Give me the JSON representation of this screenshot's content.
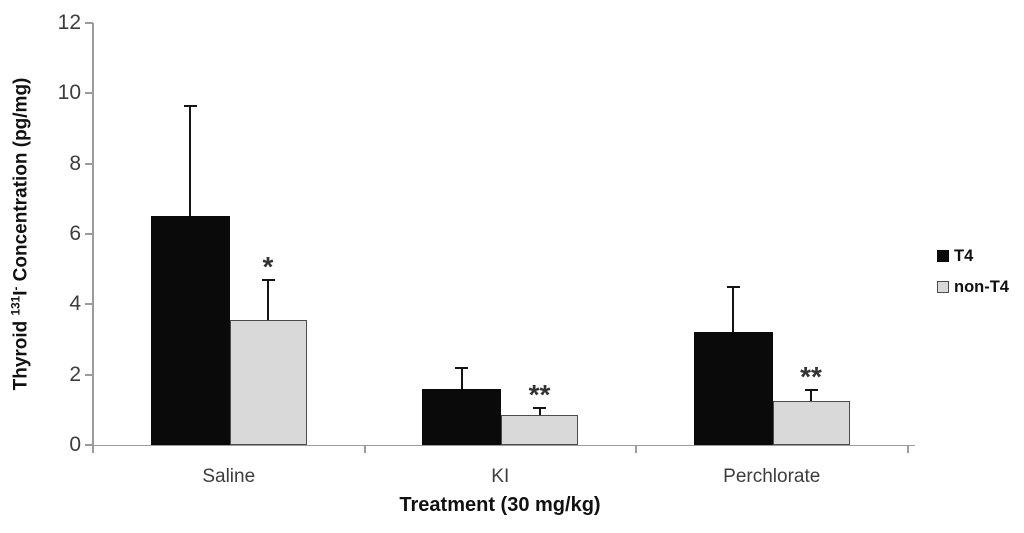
{
  "chart_data": {
    "type": "bar",
    "title": "",
    "xlabel": "Treatment (30 mg/kg)",
    "ylabel": "Thyroid ¹³¹I⁻ Concentration (pg/mg)",
    "ylabel_parts": {
      "prefix": "Thyroid ",
      "sup_isotope": "131",
      "element": "I",
      "sup_charge": "-",
      "suffix": " Concentration (pg/mg)"
    },
    "categories": [
      "Saline",
      "KI",
      "Perchlorate"
    ],
    "series": [
      {
        "name": "T4",
        "fill": "#0a0a0a",
        "border": "#0a0a0a",
        "values": [
          6.5,
          1.6,
          3.2
        ],
        "errors_upper": [
          3.15,
          0.6,
          1.3
        ],
        "significance": [
          "",
          "",
          ""
        ]
      },
      {
        "name": "non-T4",
        "fill": "#d9d9d9",
        "border": "#4d4d4d",
        "values": [
          3.55,
          0.85,
          1.25
        ],
        "errors_upper": [
          1.15,
          0.2,
          0.3
        ],
        "significance": [
          "*",
          "**",
          "**"
        ]
      }
    ],
    "yticks": [
      0,
      2,
      4,
      6,
      8,
      10,
      12
    ],
    "ylim": [
      0,
      12
    ],
    "grid": false,
    "legend_position": "right",
    "colors": {
      "axis": "#9b9b9b",
      "tick_label": "#3d3d3d",
      "error_bar": "#141414",
      "sig_marker": "#333333"
    }
  }
}
